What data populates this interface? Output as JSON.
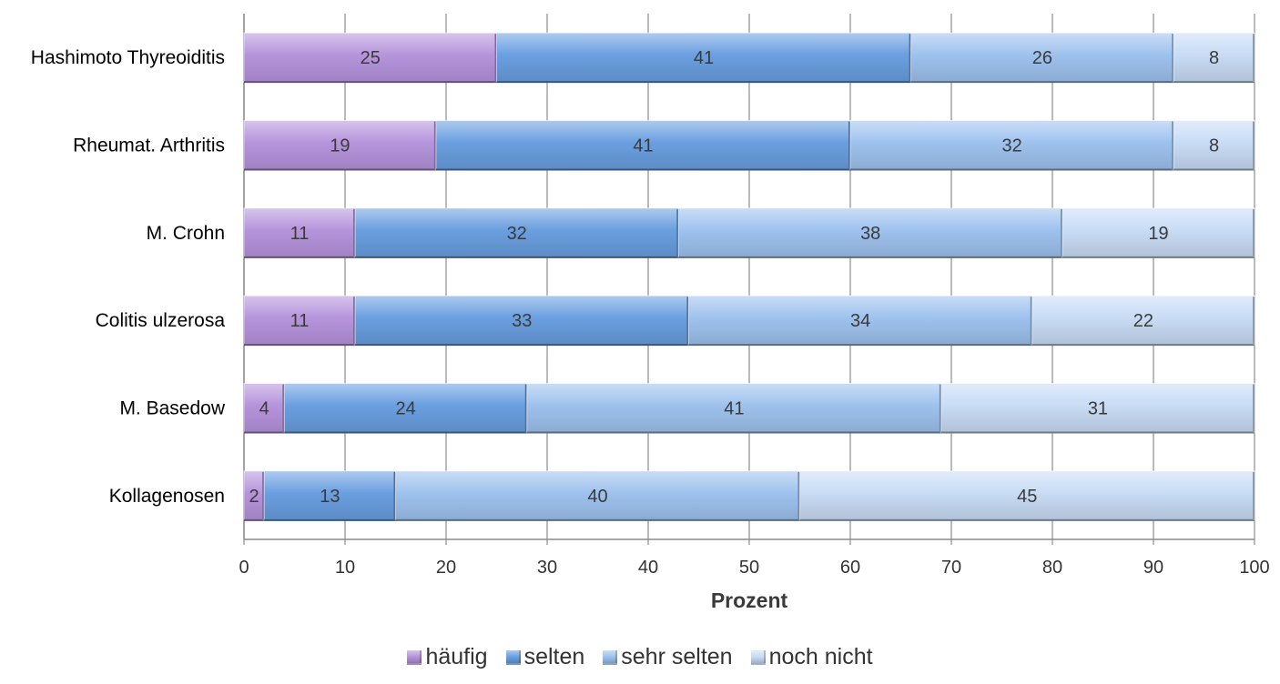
{
  "chart_data": {
    "type": "bar",
    "orientation": "horizontal",
    "stacked": true,
    "categories": [
      "Hashimoto Thyreoiditis",
      "Rheumat. Arthritis",
      "M. Crohn",
      "Colitis ulzerosa",
      "M. Basedow",
      "Kollagenosen"
    ],
    "series": [
      {
        "name": "häufig",
        "color": "#b694dc",
        "values": [
          25,
          19,
          11,
          11,
          4,
          2
        ]
      },
      {
        "name": "selten",
        "color": "#6a9fe0",
        "values": [
          41,
          41,
          32,
          33,
          24,
          13
        ]
      },
      {
        "name": "sehr selten",
        "color": "#9ec2ee",
        "values": [
          26,
          32,
          38,
          34,
          41,
          40
        ]
      },
      {
        "name": "noch nicht",
        "color": "#c8dcf5",
        "values": [
          8,
          8,
          19,
          22,
          31,
          45
        ]
      }
    ],
    "xlabel": "Prozent",
    "ylabel": "",
    "xlim": [
      0,
      100
    ],
    "xticks": [
      "0",
      "10",
      "20",
      "30",
      "40",
      "50",
      "60",
      "70",
      "80",
      "90",
      "100"
    ],
    "grid": "vertical",
    "legend_position": "bottom"
  }
}
